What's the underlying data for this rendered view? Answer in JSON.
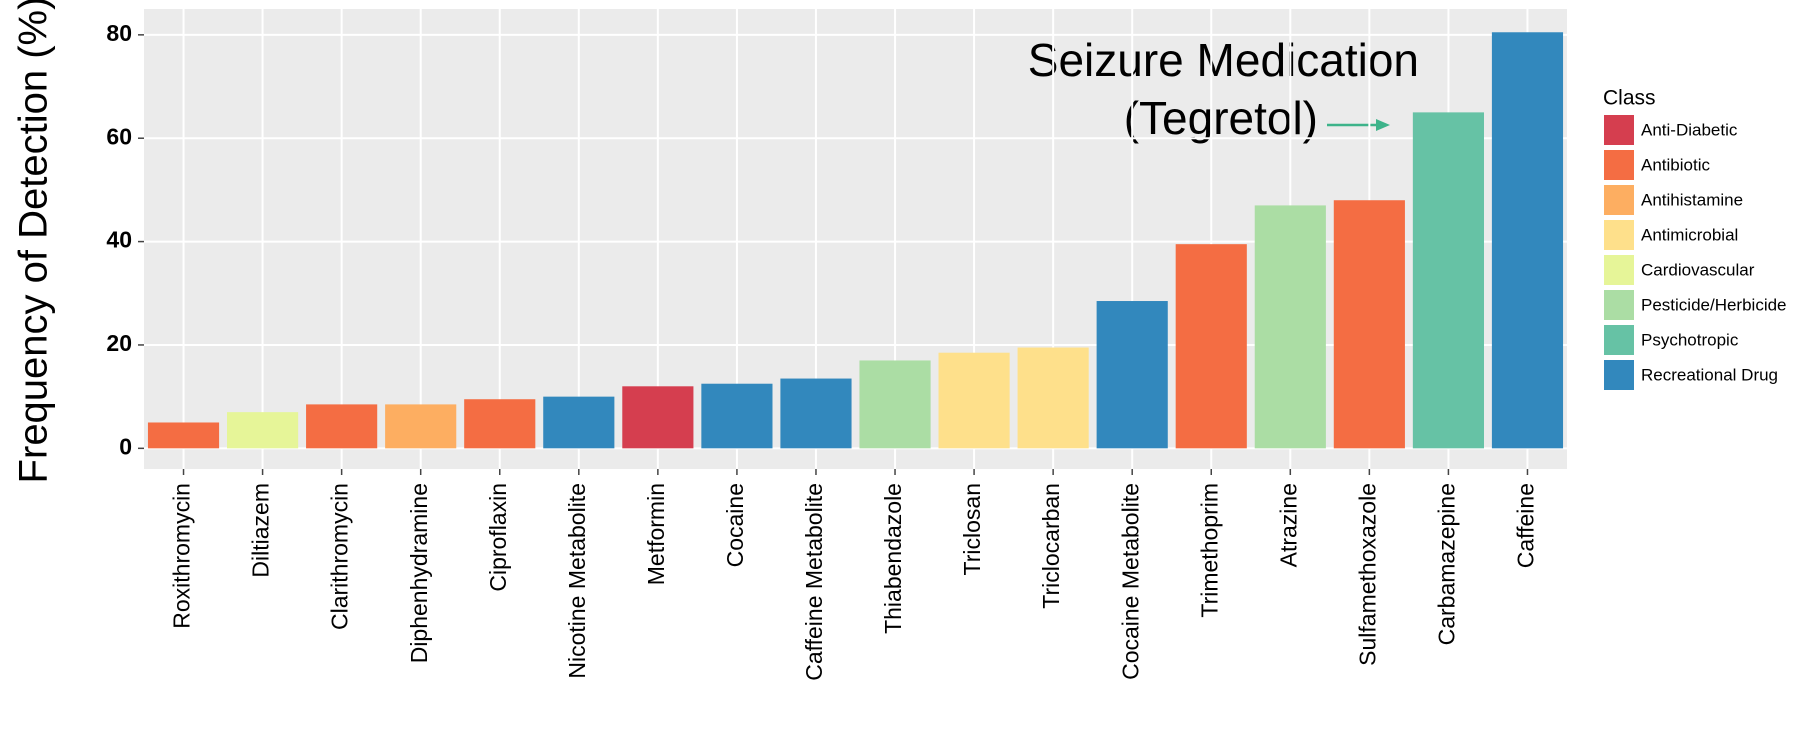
{
  "chart_data": {
    "type": "bar",
    "y_label": "Frequency of Detection (%)",
    "legend_title": "Class",
    "annotation": [
      "Seizure Medication",
      "(Tegretol)"
    ],
    "categories": [
      "Roxithromycin",
      "Diltiazem",
      "Clarithromycin",
      "Diphenhydramine",
      "Ciproflaxin",
      "Nicotine Metabolite",
      "Metformin",
      "Cocaine",
      "Caffeine Metabolite",
      "Thiabendazole",
      "Triclosan",
      "Triclocarban",
      "Cocaine Metabolite",
      "Trimethoprim",
      "Atrazine",
      "Sulfamethoxazole",
      "Carbamazepine",
      "Caffeine"
    ],
    "series": [
      {
        "name": "Anti-Diabetic",
        "color": "#d53e4f",
        "values": [
          null,
          null,
          null,
          null,
          null,
          null,
          12,
          null,
          null,
          null,
          null,
          null,
          null,
          null,
          null,
          null,
          null,
          null
        ]
      },
      {
        "name": "Antibiotic",
        "color": "#f46d43",
        "values": [
          5,
          null,
          8.5,
          null,
          9.5,
          null,
          null,
          null,
          null,
          null,
          null,
          null,
          null,
          39.5,
          null,
          48,
          null,
          null
        ]
      },
      {
        "name": "Antihistamine",
        "color": "#fdae61",
        "values": [
          null,
          null,
          null,
          8.5,
          null,
          null,
          null,
          null,
          null,
          null,
          null,
          null,
          null,
          null,
          null,
          null,
          null,
          null
        ]
      },
      {
        "name": "Antimicrobial",
        "color": "#fee08b",
        "values": [
          null,
          null,
          null,
          null,
          null,
          null,
          null,
          null,
          null,
          null,
          18.5,
          19.5,
          null,
          null,
          null,
          null,
          null,
          null
        ]
      },
      {
        "name": "Cardiovascular",
        "color": "#e6f598",
        "values": [
          null,
          7,
          null,
          null,
          null,
          null,
          null,
          null,
          null,
          null,
          null,
          null,
          null,
          null,
          null,
          null,
          null,
          null
        ]
      },
      {
        "name": "Pesticide/Herbicide",
        "color": "#abdda4",
        "values": [
          null,
          null,
          null,
          null,
          null,
          null,
          null,
          null,
          null,
          17,
          null,
          null,
          null,
          null,
          47,
          null,
          null,
          null
        ]
      },
      {
        "name": "Psychotropic",
        "color": "#66c2a5",
        "values": [
          null,
          null,
          null,
          null,
          null,
          null,
          null,
          null,
          null,
          null,
          null,
          null,
          null,
          null,
          null,
          null,
          65,
          null
        ]
      },
      {
        "name": "Recreational Drug",
        "color": "#3288bd",
        "values": [
          null,
          null,
          null,
          null,
          null,
          10,
          null,
          12.5,
          13.5,
          null,
          null,
          null,
          28.5,
          null,
          null,
          null,
          null,
          80.5
        ]
      }
    ],
    "annotation_color": "#3db38a",
    "ylim": [
      -4,
      85
    ],
    "yticks": [
      0,
      20,
      40,
      60,
      80
    ],
    "grid": true,
    "legend": "right"
  }
}
